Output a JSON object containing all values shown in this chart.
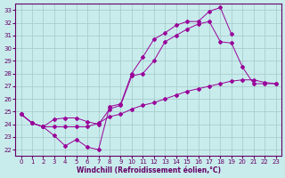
{
  "xlabel": "Windchill (Refroidissement éolien,°C)",
  "bg_color": "#c8ecec",
  "grid_color": "#aacccc",
  "line_color": "#990099",
  "xlim": [
    -0.5,
    23.5
  ],
  "ylim": [
    21.5,
    33.5
  ],
  "xticks": [
    0,
    1,
    2,
    3,
    4,
    5,
    6,
    7,
    8,
    9,
    10,
    11,
    12,
    13,
    14,
    15,
    16,
    17,
    18,
    19,
    20,
    21,
    22,
    23
  ],
  "yticks": [
    22,
    23,
    24,
    25,
    26,
    27,
    28,
    29,
    30,
    31,
    32,
    33
  ],
  "line1_x": [
    0,
    1,
    2,
    3,
    4,
    5,
    6,
    7,
    8,
    9,
    10,
    11,
    12,
    13,
    14,
    15,
    16,
    17,
    18,
    19
  ],
  "line1_y": [
    24.8,
    24.1,
    23.8,
    23.1,
    22.3,
    22.8,
    22.2,
    22.0,
    25.4,
    25.6,
    28.0,
    29.3,
    30.7,
    31.2,
    31.8,
    32.1,
    32.1,
    32.9,
    33.2,
    31.1
  ],
  "line2_x": [
    0,
    1,
    2,
    3,
    4,
    5,
    6,
    7,
    8,
    9,
    10,
    11,
    12,
    13,
    14,
    15,
    16,
    17,
    18,
    19,
    20,
    21,
    22,
    23
  ],
  "line2_y": [
    24.8,
    24.1,
    23.8,
    23.8,
    23.8,
    23.8,
    23.8,
    24.1,
    24.6,
    24.8,
    25.2,
    25.5,
    25.7,
    26.0,
    26.3,
    26.6,
    26.8,
    27.0,
    27.2,
    27.4,
    27.5,
    27.5,
    27.3,
    27.2
  ],
  "line3_x": [
    0,
    1,
    2,
    3,
    4,
    5,
    6,
    7,
    8,
    9,
    10,
    11,
    12,
    13,
    14,
    15,
    16,
    17,
    18,
    19,
    20,
    21,
    22,
    23
  ],
  "line3_y": [
    24.8,
    24.1,
    23.8,
    24.4,
    24.5,
    24.5,
    24.2,
    24.0,
    25.2,
    25.5,
    27.8,
    28.0,
    29.0,
    30.5,
    31.0,
    31.5,
    31.9,
    32.1,
    30.5,
    30.4,
    28.5,
    27.2,
    27.2,
    27.2
  ]
}
